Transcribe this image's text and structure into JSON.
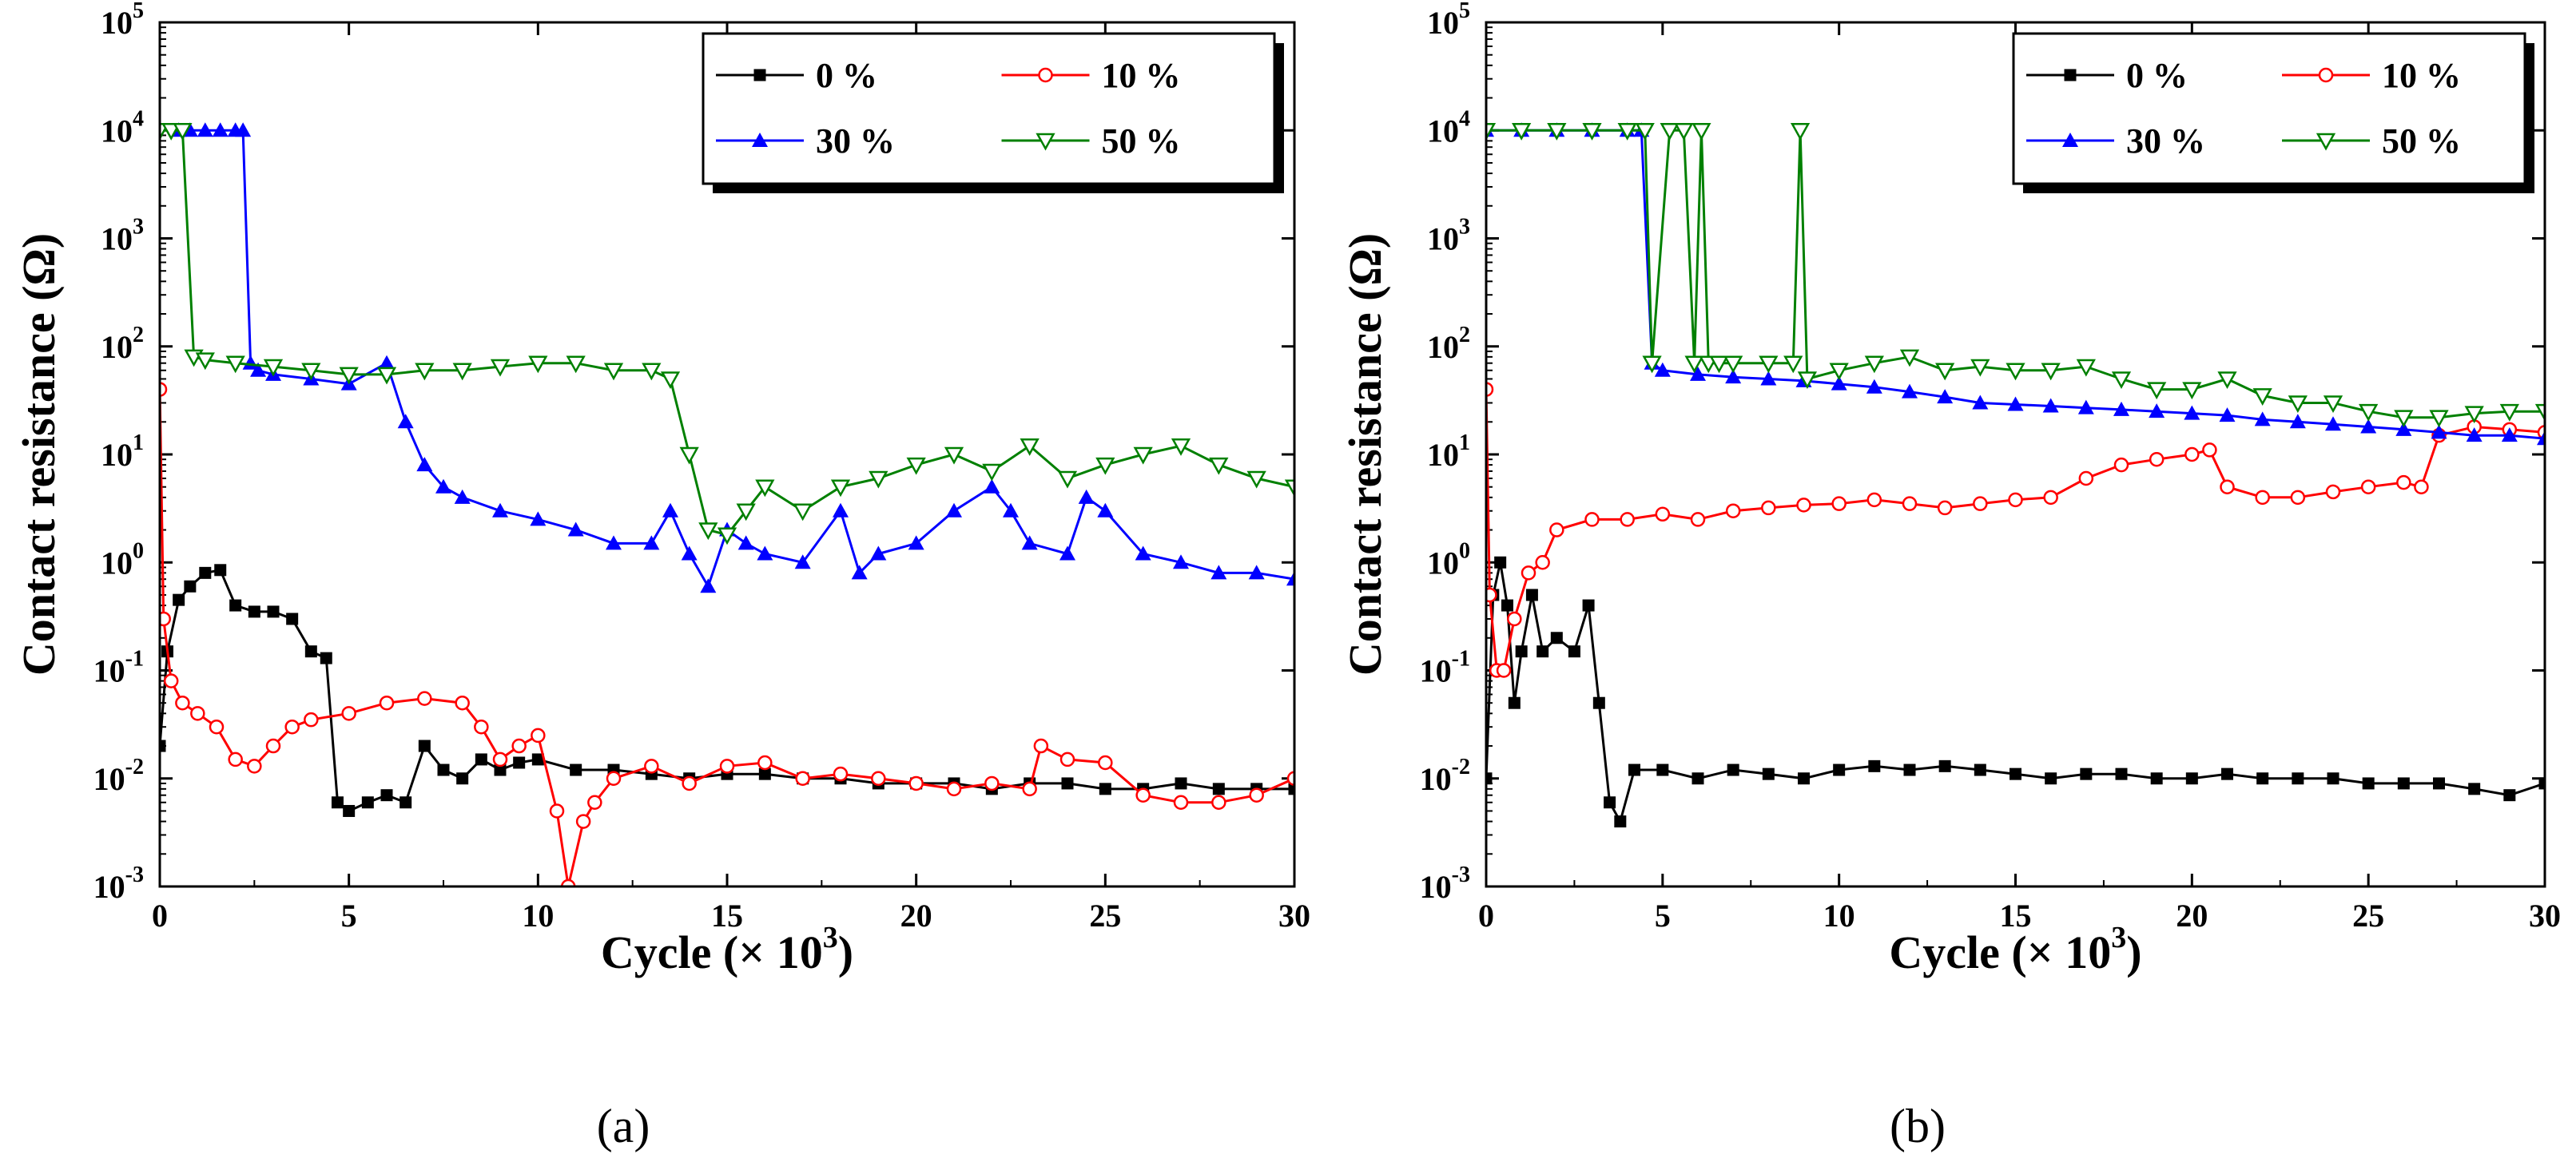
{
  "chart_data": [
    {
      "type": "line",
      "panel_label": "(a)",
      "xlabel": "Cycle (× 10",
      "xlabel_sup": "3",
      "xlabel_close": ")",
      "ylabel": "Contact resistance (Ω)",
      "xlim": [
        0,
        30
      ],
      "ylim": [
        0.001,
        100000
      ],
      "yscale": "log",
      "x_ticks": [
        0,
        5,
        10,
        15,
        20,
        25,
        30
      ],
      "y_ticks": [
        {
          "value": 0.001,
          "base": "10",
          "exp": "-3"
        },
        {
          "value": 0.01,
          "base": "10",
          "exp": "-2"
        },
        {
          "value": 0.1,
          "base": "10",
          "exp": "-1"
        },
        {
          "value": 1,
          "base": "10",
          "exp": "0"
        },
        {
          "value": 10,
          "base": "10",
          "exp": "1"
        },
        {
          "value": 100,
          "base": "10",
          "exp": "2"
        },
        {
          "value": 1000,
          "base": "10",
          "exp": "3"
        },
        {
          "value": 10000,
          "base": "10",
          "exp": "4"
        },
        {
          "value": 100000,
          "base": "10",
          "exp": "5"
        }
      ],
      "legend_position": "top-right",
      "series": [
        {
          "name": "0 %",
          "color": "#000000",
          "marker": "square",
          "x": [
            0,
            0.2,
            0.5,
            0.8,
            1.2,
            1.6,
            2.0,
            2.5,
            3.0,
            3.5,
            4.0,
            4.4,
            4.7,
            5.0,
            5.5,
            6.0,
            6.5,
            7.0,
            7.5,
            8.0,
            8.5,
            9.0,
            9.5,
            10,
            11,
            12,
            13,
            14,
            15,
            16,
            17,
            18,
            19,
            20,
            21,
            22,
            23,
            24,
            25,
            26,
            27,
            28,
            29,
            30
          ],
          "y": [
            0.02,
            0.15,
            0.45,
            0.6,
            0.8,
            0.85,
            0.4,
            0.35,
            0.35,
            0.3,
            0.15,
            0.13,
            0.006,
            0.005,
            0.006,
            0.007,
            0.006,
            0.02,
            0.012,
            0.01,
            0.015,
            0.012,
            0.014,
            0.015,
            0.012,
            0.012,
            0.011,
            0.01,
            0.011,
            0.011,
            0.01,
            0.01,
            0.009,
            0.009,
            0.009,
            0.008,
            0.009,
            0.009,
            0.008,
            0.008,
            0.009,
            0.008,
            0.008,
            0.008
          ]
        },
        {
          "name": "10 %",
          "color": "#ff0000",
          "marker": "circle-open",
          "x": [
            0,
            0.1,
            0.3,
            0.6,
            1.0,
            1.5,
            2.0,
            2.5,
            3.0,
            3.5,
            4.0,
            5.0,
            6.0,
            7.0,
            8.0,
            8.5,
            9.0,
            9.5,
            10.0,
            10.5,
            10.8,
            11.2,
            11.5,
            12,
            13,
            14,
            15,
            16,
            17,
            18,
            19,
            20,
            21,
            22,
            23,
            23.3,
            24,
            25,
            26,
            27,
            28,
            29,
            30
          ],
          "y": [
            40,
            0.3,
            0.08,
            0.05,
            0.04,
            0.03,
            0.015,
            0.013,
            0.02,
            0.03,
            0.035,
            0.04,
            0.05,
            0.055,
            0.05,
            0.03,
            0.015,
            0.02,
            0.025,
            0.005,
            0.001,
            0.004,
            0.006,
            0.01,
            0.013,
            0.009,
            0.013,
            0.014,
            0.01,
            0.011,
            0.01,
            0.009,
            0.008,
            0.009,
            0.008,
            0.02,
            0.015,
            0.014,
            0.007,
            0.006,
            0.006,
            0.007,
            0.01
          ]
        },
        {
          "name": "30 %",
          "color": "#0000ff",
          "marker": "triangle",
          "x": [
            0.5,
            0.8,
            1.2,
            1.6,
            2.0,
            2.2,
            2.4,
            2.6,
            3,
            4,
            5,
            6,
            6.5,
            7,
            7.5,
            8,
            9,
            10,
            11,
            12,
            13,
            13.5,
            14,
            14.5,
            15,
            15.5,
            16,
            17,
            18,
            18.5,
            19,
            20,
            21,
            22,
            22.5,
            23,
            24,
            24.5,
            25,
            26,
            27,
            28,
            29,
            30
          ],
          "y": [
            10000,
            10000,
            10000,
            10000,
            10000,
            10000,
            70,
            60,
            55,
            50,
            45,
            70,
            20,
            8,
            5,
            4,
            3,
            2.5,
            2,
            1.5,
            1.5,
            3,
            1.2,
            0.6,
            2,
            1.5,
            1.2,
            1,
            3,
            0.8,
            1.2,
            1.5,
            3,
            5,
            3,
            1.5,
            1.2,
            4,
            3,
            1.2,
            1,
            0.8,
            0.8,
            0.7
          ]
        },
        {
          "name": "50 %",
          "color": "#008000",
          "marker": "triangle-down-open",
          "x": [
            0,
            0.3,
            0.6,
            0.9,
            1.2,
            2,
            3,
            4,
            5,
            6,
            7,
            8,
            9,
            10,
            11,
            12,
            13,
            13.5,
            14,
            14.5,
            15,
            15.5,
            16,
            17,
            18,
            19,
            20,
            21,
            22,
            23,
            24,
            25,
            26,
            27,
            28,
            29,
            30
          ],
          "y": [
            10000,
            10000,
            10000,
            80,
            75,
            70,
            65,
            60,
            55,
            55,
            60,
            60,
            65,
            70,
            70,
            60,
            60,
            50,
            10,
            2,
            1.8,
            3,
            5,
            3,
            5,
            6,
            8,
            10,
            7,
            12,
            6,
            8,
            10,
            12,
            8,
            6,
            5
          ]
        }
      ]
    },
    {
      "type": "line",
      "panel_label": "(b)",
      "xlabel": "Cycle (× 10",
      "xlabel_sup": "3",
      "xlabel_close": ")",
      "ylabel": "Contact resistance (Ω)",
      "xlim": [
        0,
        30
      ],
      "ylim": [
        0.001,
        100000
      ],
      "yscale": "log",
      "x_ticks": [
        0,
        5,
        10,
        15,
        20,
        25,
        30
      ],
      "y_ticks": [
        {
          "value": 0.001,
          "base": "10",
          "exp": "-3"
        },
        {
          "value": 0.01,
          "base": "10",
          "exp": "-2"
        },
        {
          "value": 0.1,
          "base": "10",
          "exp": "-1"
        },
        {
          "value": 1,
          "base": "10",
          "exp": "0"
        },
        {
          "value": 10,
          "base": "10",
          "exp": "1"
        },
        {
          "value": 100,
          "base": "10",
          "exp": "2"
        },
        {
          "value": 1000,
          "base": "10",
          "exp": "3"
        },
        {
          "value": 10000,
          "base": "10",
          "exp": "4"
        },
        {
          "value": 100000,
          "base": "10",
          "exp": "5"
        }
      ],
      "legend_position": "top-right",
      "series": [
        {
          "name": "0 %",
          "color": "#000000",
          "marker": "square",
          "x": [
            0,
            0.2,
            0.4,
            0.6,
            0.8,
            1.0,
            1.3,
            1.6,
            2.0,
            2.5,
            2.9,
            3.2,
            3.5,
            3.8,
            4.2,
            5,
            6,
            7,
            8,
            9,
            10,
            11,
            12,
            13,
            14,
            15,
            16,
            17,
            18,
            19,
            20,
            21,
            22,
            23,
            24,
            25,
            26,
            27,
            28,
            29,
            30
          ],
          "y": [
            0.01,
            0.5,
            1.0,
            0.4,
            0.05,
            0.15,
            0.5,
            0.15,
            0.2,
            0.15,
            0.4,
            0.05,
            0.006,
            0.004,
            0.012,
            0.012,
            0.01,
            0.012,
            0.011,
            0.01,
            0.012,
            0.013,
            0.012,
            0.013,
            0.012,
            0.011,
            0.01,
            0.011,
            0.011,
            0.01,
            0.01,
            0.011,
            0.01,
            0.01,
            0.01,
            0.009,
            0.009,
            0.009,
            0.008,
            0.007,
            0.009
          ]
        },
        {
          "name": "10 %",
          "color": "#ff0000",
          "marker": "circle-open",
          "x": [
            0,
            0.1,
            0.3,
            0.5,
            0.8,
            1.2,
            1.6,
            2,
            3,
            4,
            5,
            6,
            7,
            8,
            9,
            10,
            11,
            12,
            13,
            14,
            15,
            16,
            17,
            18,
            19,
            20,
            20.5,
            21,
            22,
            23,
            24,
            25,
            26,
            26.5,
            27,
            28,
            29,
            30
          ],
          "y": [
            40,
            0.5,
            0.1,
            0.1,
            0.3,
            0.8,
            1.0,
            2,
            2.5,
            2.5,
            2.8,
            2.5,
            3,
            3.2,
            3.4,
            3.5,
            3.8,
            3.5,
            3.2,
            3.5,
            3.8,
            4,
            6,
            8,
            9,
            10,
            11,
            5,
            4,
            4,
            4.5,
            5,
            5.5,
            5,
            15,
            18,
            17,
            16
          ]
        },
        {
          "name": "30 %",
          "color": "#0000ff",
          "marker": "triangle",
          "x": [
            0,
            1,
            2,
            3,
            4,
            4.4,
            4.7,
            5,
            6,
            7,
            8,
            9,
            10,
            11,
            12,
            13,
            14,
            15,
            16,
            17,
            18,
            19,
            20,
            21,
            22,
            23,
            24,
            25,
            26,
            27,
            28,
            29,
            30
          ],
          "y": [
            10000,
            10000,
            10000,
            10000,
            10000,
            10000,
            70,
            60,
            55,
            52,
            50,
            48,
            45,
            42,
            38,
            34,
            30,
            29,
            28,
            27,
            26,
            25,
            24,
            23,
            21,
            20,
            19,
            18,
            17,
            16,
            15,
            15,
            14
          ]
        },
        {
          "name": "50 %",
          "color": "#008000",
          "marker": "triangle-down-open",
          "x": [
            0,
            1,
            2,
            3,
            4,
            4.5,
            4.7,
            5.2,
            5.6,
            5.9,
            6.1,
            6.3,
            6.6,
            7,
            8,
            8.7,
            8.9,
            9.1,
            10,
            11,
            12,
            13,
            14,
            15,
            16,
            17,
            18,
            19,
            20,
            21,
            22,
            23,
            24,
            25,
            26,
            27,
            28,
            29,
            30
          ],
          "y": [
            10000,
            10000,
            10000,
            10000,
            10000,
            10000,
            70,
            10000,
            10000,
            70,
            10000,
            70,
            70,
            70,
            70,
            70,
            10000,
            50,
            60,
            70,
            80,
            60,
            65,
            60,
            60,
            65,
            50,
            40,
            40,
            50,
            35,
            30,
            30,
            25,
            22,
            22,
            24,
            25,
            25
          ]
        }
      ]
    }
  ]
}
